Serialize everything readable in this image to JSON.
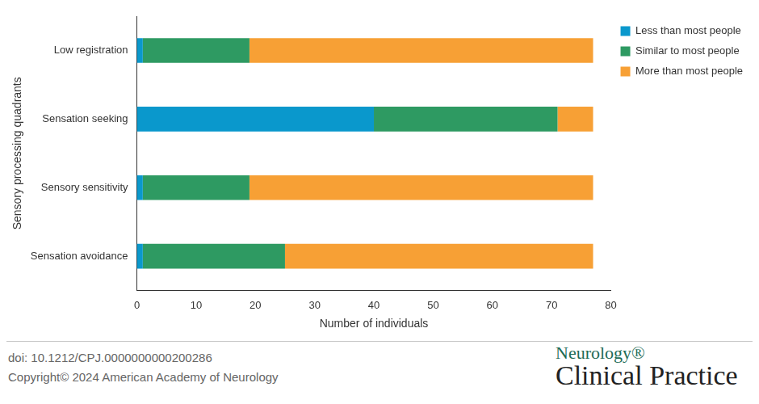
{
  "chart_data": {
    "type": "bar",
    "orientation": "horizontal",
    "stacked": true,
    "grid": false,
    "legend": "top-right",
    "x_label": "Number of individuals",
    "y_label": "Sensory processing quadrants",
    "categories": [
      "Low registration",
      "Sensation seeking",
      "Sensory sensitivity",
      "Sensation avoidance"
    ],
    "series": [
      {
        "name": "Less than most people",
        "color": "#0a98cc",
        "values": [
          1,
          40,
          1,
          1
        ]
      },
      {
        "name": "Similar to most people",
        "color": "#2e9a62",
        "values": [
          18,
          31,
          18,
          24
        ]
      },
      {
        "name": "More than most people",
        "color": "#f7a035",
        "values": [
          58,
          6,
          58,
          52
        ]
      }
    ],
    "xlim": [
      0,
      80
    ],
    "xticks": [
      0,
      10,
      20,
      30,
      40,
      50,
      60,
      70,
      80
    ]
  },
  "footer": {
    "doi": "doi: 10.1212/CPJ.0000000000200286",
    "copyright": "Copyright© 2024 American Academy of Neurology",
    "journal": "Neurology®",
    "journal_subtitle": "Clinical Practice"
  }
}
